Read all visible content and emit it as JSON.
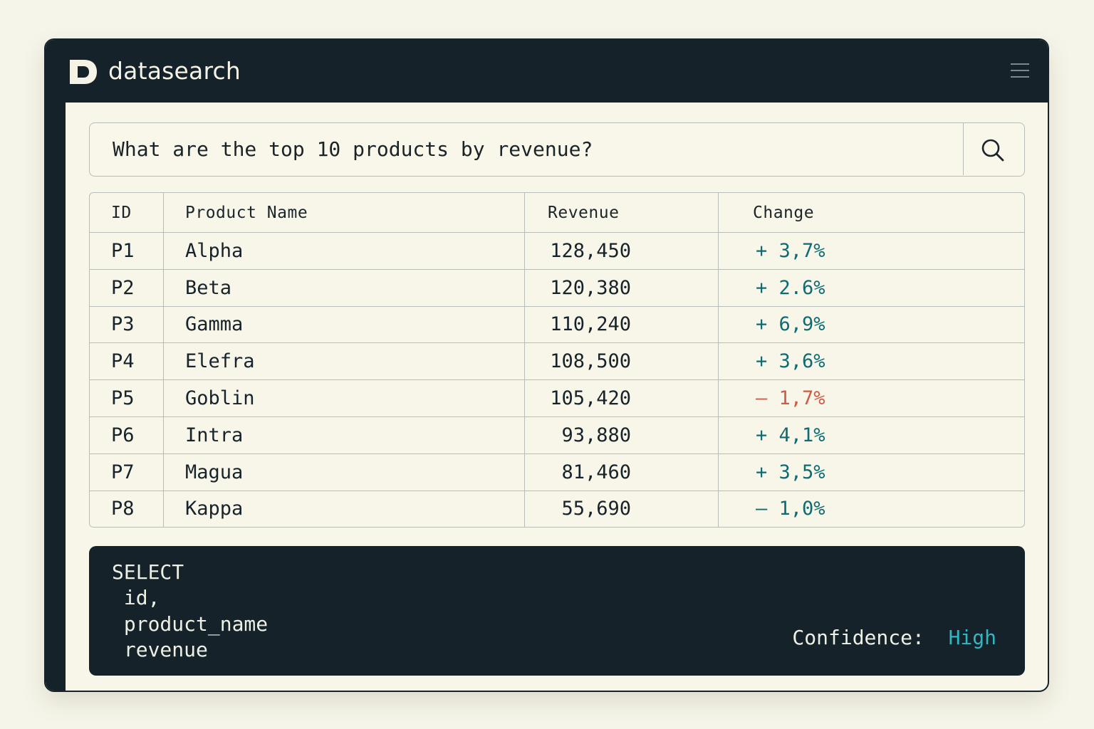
{
  "app": {
    "title": "datasearch",
    "logo_icon": "d-logo-icon",
    "menu_icon": "hamburger-menu-icon"
  },
  "search": {
    "value": "What are the top 10 products by revenue?",
    "button_icon": "search-icon"
  },
  "table": {
    "headers": {
      "id": "ID",
      "name": "Product Name",
      "revenue": "Revenue",
      "change": "Change"
    },
    "rows": [
      {
        "id": "P1",
        "name": "Alpha",
        "revenue": "128,450",
        "change": "+ 3,7%",
        "direction": "up"
      },
      {
        "id": "P2",
        "name": "Beta",
        "revenue": "120,380",
        "change": "+ 2.6%",
        "direction": "up"
      },
      {
        "id": "P3",
        "name": "Gamma",
        "revenue": "110,240",
        "change": "+ 6,9%",
        "direction": "up"
      },
      {
        "id": "P4",
        "name": "Elefra",
        "revenue": "108,500",
        "change": "+ 3,6%",
        "direction": "up"
      },
      {
        "id": "P5",
        "name": "Goblin",
        "revenue": "105,420",
        "change": "– 1,7%",
        "direction": "down"
      },
      {
        "id": "P6",
        "name": "Intra",
        "revenue": "93,880",
        "change": "+ 4,1%",
        "direction": "up"
      },
      {
        "id": "P7",
        "name": "Magua",
        "revenue": "81,460",
        "change": "+ 3,5%",
        "direction": "up"
      },
      {
        "id": "P8",
        "name": "Kappa",
        "revenue": "55,690",
        "change": "– 1,0%",
        "direction": "neg"
      }
    ]
  },
  "sql": {
    "lines": [
      "SELECT",
      " id,",
      " product_name",
      " revenue"
    ]
  },
  "confidence": {
    "label": "Confidence:",
    "value": "High"
  },
  "colors": {
    "dark": "#15222a",
    "background": "#f7f6e8",
    "positive": "#0f6b73",
    "negative": "#cf5a48",
    "confidence_high": "#2fb8c4"
  }
}
